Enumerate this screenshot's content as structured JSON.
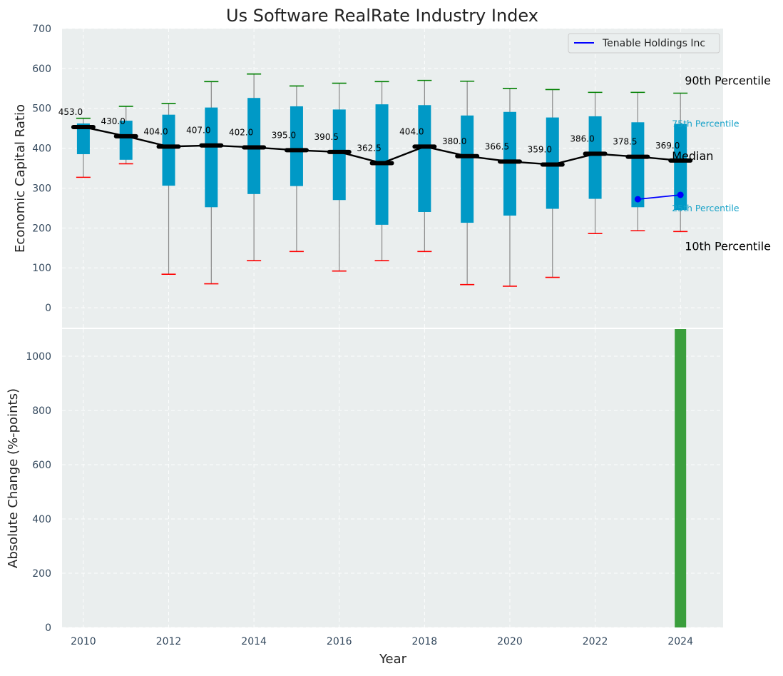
{
  "title": "Us Software RealRate Industry Index",
  "chart_data": [
    {
      "type": "box",
      "ylabel": "Economic Capital Ratio",
      "ylim": [
        -50,
        700
      ],
      "yticks": [
        0,
        100,
        200,
        300,
        400,
        500,
        600,
        700
      ],
      "xlim": [
        2009.5,
        2025
      ],
      "grid": true,
      "legend": {
        "placement": "top-right",
        "entries": [
          "Tenable Holdings Inc"
        ]
      },
      "years": [
        2010,
        2011,
        2012,
        2013,
        2014,
        2015,
        2016,
        2017,
        2018,
        2019,
        2020,
        2021,
        2022,
        2023,
        2024
      ],
      "p90": [
        475,
        505,
        512,
        567,
        586,
        556,
        563,
        567,
        570,
        568,
        550,
        547,
        540,
        540,
        538
      ],
      "p75": [
        462,
        469,
        484,
        502,
        526,
        505,
        497,
        510,
        508,
        482,
        491,
        477,
        480,
        465,
        461
      ],
      "median": [
        453.0,
        430.0,
        404.0,
        407.0,
        402.0,
        395.0,
        390.5,
        362.5,
        404.0,
        380.0,
        366.5,
        359.0,
        386.0,
        378.5,
        369.0
      ],
      "p25": [
        385,
        371,
        306,
        252,
        285,
        305,
        270,
        208,
        240,
        213,
        231,
        248,
        273,
        252,
        245
      ],
      "p10": [
        327,
        361,
        84,
        60,
        118,
        141,
        92,
        118,
        141,
        58,
        54,
        76,
        186,
        193,
        191
      ],
      "median_labels": [
        "453.0",
        "430.0",
        "404.0",
        "407.0",
        "402.0",
        "395.0",
        "390.5",
        "362.5",
        "404.0",
        "380.0",
        "366.5",
        "359.0",
        "386.0",
        "378.5",
        "369.0"
      ],
      "company_series": {
        "name": "Tenable Holdings Inc",
        "x": [
          2023,
          2024
        ],
        "y": [
          272,
          283
        ]
      },
      "annotations": {
        "p90": "90th Percentile",
        "p75": "75th Percentile",
        "median": "Median",
        "p25": "25th Percentile",
        "p10": "10th Percentile"
      },
      "colors": {
        "box": "#0099c6",
        "median_line": "#000000",
        "whisker": "#888888",
        "p90_cap": "#008000",
        "p10_cap": "#ff0000",
        "company": "#0000ff",
        "background": "#eaeeee"
      }
    },
    {
      "type": "bar",
      "xlabel": "Year",
      "ylabel": "Absolute Change (%-points)",
      "ylim": [
        0,
        1100
      ],
      "yticks": [
        0,
        200,
        400,
        600,
        800,
        1000
      ],
      "xticks": [
        2010,
        2012,
        2014,
        2016,
        2018,
        2020,
        2022,
        2024
      ],
      "grid": true,
      "x": [
        2024
      ],
      "values": [
        1100
      ],
      "colors": {
        "bar": "#3a9e3c",
        "background": "#eaeeee"
      }
    }
  ]
}
